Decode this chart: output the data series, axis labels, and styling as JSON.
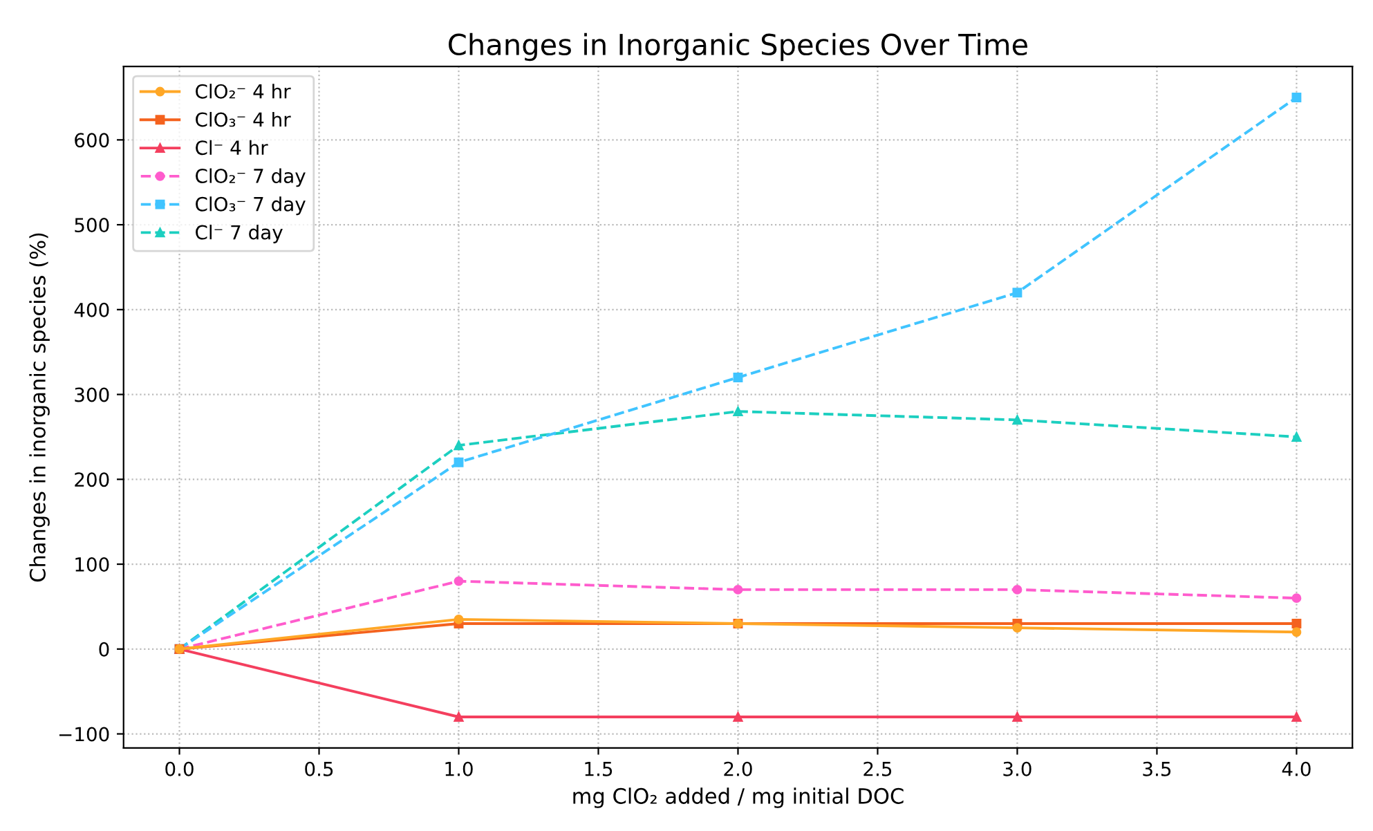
{
  "chart_data": {
    "type": "line",
    "title": "Changes in Inorganic Species Over Time",
    "xlabel": "mg ClO₂ added / mg initial DOC",
    "ylabel": "Changes in inorganic species (%)",
    "x": [
      0.0,
      1.0,
      2.0,
      3.0,
      4.0
    ],
    "series": [
      {
        "name": "ClO₂⁻ 4 hr",
        "color": "#ffa726",
        "marker": "circle",
        "line_style": "solid",
        "values": [
          0,
          35,
          30,
          25,
          20
        ]
      },
      {
        "name": "ClO₃⁻ 4 hr",
        "color": "#f4621e",
        "marker": "square",
        "line_style": "solid",
        "values": [
          0,
          30,
          30,
          30,
          30
        ]
      },
      {
        "name": "Cl⁻ 4 hr",
        "color": "#f43f5e",
        "marker": "triangle",
        "line_style": "solid",
        "values": [
          0,
          -80,
          -80,
          -80,
          -80
        ]
      },
      {
        "name": "ClO₂⁻ 7 day",
        "color": "#ff5ccd",
        "marker": "circle",
        "line_style": "dashed",
        "values": [
          0,
          80,
          70,
          70,
          60
        ]
      },
      {
        "name": "ClO₃⁻ 7 day",
        "color": "#40c4ff",
        "marker": "square",
        "line_style": "dashed",
        "values": [
          0,
          220,
          320,
          420,
          650
        ]
      },
      {
        "name": "Cl⁻ 7 day",
        "color": "#1ccfc0",
        "marker": "triangle",
        "line_style": "dashed",
        "values": [
          0,
          240,
          280,
          270,
          250
        ]
      }
    ],
    "xlim": [
      -0.2,
      4.2
    ],
    "xticks": [
      {
        "value": 0,
        "label": "0.0"
      },
      {
        "value": 0.5,
        "label": "0.5"
      },
      {
        "value": 1,
        "label": "1.0"
      },
      {
        "value": 1.5,
        "label": "1.5"
      },
      {
        "value": 2,
        "label": "2.0"
      },
      {
        "value": 2.5,
        "label": "2.5"
      },
      {
        "value": 3,
        "label": "3.0"
      },
      {
        "value": 3.5,
        "label": "3.5"
      },
      {
        "value": 4,
        "label": "4.0"
      }
    ],
    "ylim": [
      -116.5,
      686.5
    ],
    "yticks": [
      {
        "value": -100,
        "label": "−100"
      },
      0,
      100,
      200,
      300,
      400,
      500,
      600
    ],
    "grid": true,
    "legend": "top left"
  }
}
